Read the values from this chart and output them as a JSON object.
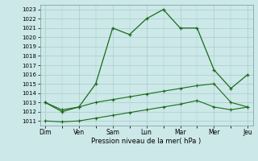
{
  "title": "",
  "xlabel": "Pression niveau de la mer( hPa )",
  "ylabel": "",
  "bg_color": "#cce8e8",
  "grid_color": "#aacccc",
  "line_color": "#1a6b1a",
  "x_labels": [
    "Dim",
    "Ven",
    "Sam",
    "Lun",
    "Mar",
    "Mer",
    "Jeu"
  ],
  "x_positions": [
    0,
    1,
    2,
    3,
    4,
    5,
    6
  ],
  "ylim": [
    1010.5,
    1023.5
  ],
  "yticks": [
    1011,
    1012,
    1013,
    1014,
    1015,
    1016,
    1017,
    1018,
    1019,
    1020,
    1021,
    1022,
    1023
  ],
  "line1_x": [
    0,
    0.5,
    1.0,
    1.5,
    2.0,
    2.5,
    3.0,
    3.5,
    4.0,
    4.5,
    5.0,
    5.5,
    6.0
  ],
  "line1_y": [
    1013.0,
    1012.0,
    1012.5,
    1015.0,
    1021.0,
    1020.3,
    1022.0,
    1023.0,
    1021.0,
    1021.0,
    1016.5,
    1014.5,
    1016.0
  ],
  "line2_x": [
    0,
    0.5,
    1.0,
    1.5,
    2.0,
    2.5,
    3.0,
    3.5,
    4.0,
    4.5,
    5.0,
    5.5,
    6.0
  ],
  "line2_y": [
    1013.0,
    1012.2,
    1012.5,
    1013.0,
    1013.3,
    1013.6,
    1013.9,
    1014.2,
    1014.5,
    1014.8,
    1015.0,
    1013.0,
    1012.5
  ],
  "line3_x": [
    0,
    0.5,
    1.0,
    1.5,
    2.0,
    2.5,
    3.0,
    3.5,
    4.0,
    4.5,
    5.0,
    5.5,
    6.0
  ],
  "line3_y": [
    1011.0,
    1010.9,
    1011.0,
    1011.3,
    1011.6,
    1011.9,
    1012.2,
    1012.5,
    1012.8,
    1013.2,
    1012.5,
    1012.2,
    1012.5
  ]
}
